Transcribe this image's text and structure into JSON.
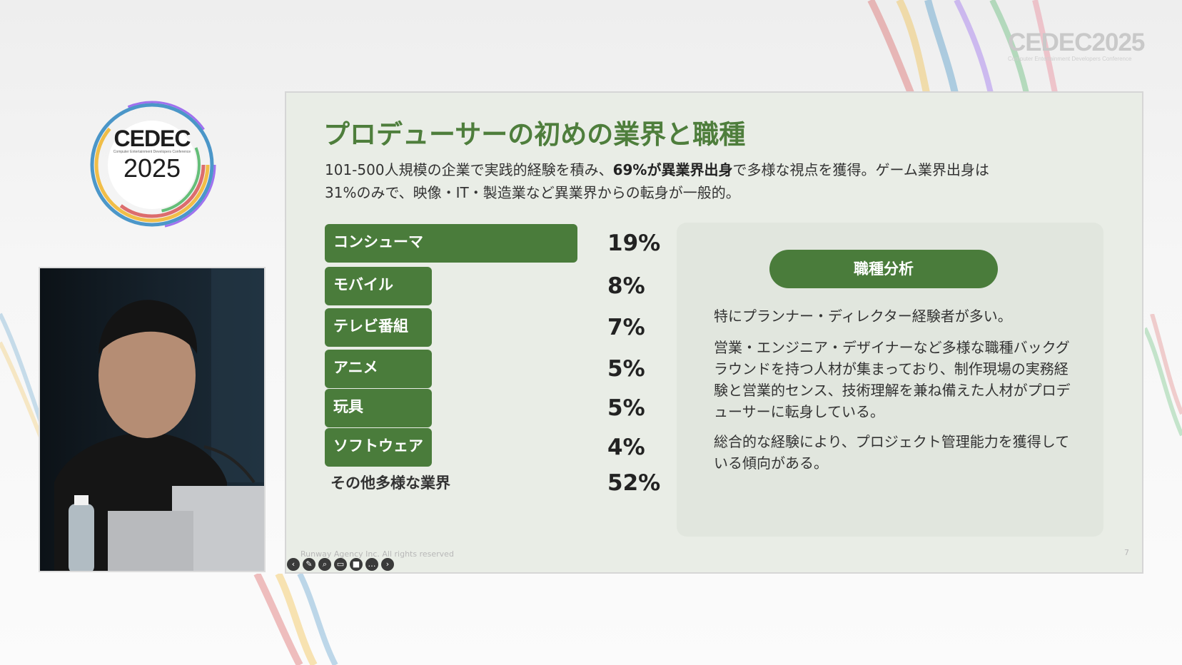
{
  "brand": {
    "top_right": {
      "word": "CEDEC2025",
      "subtitle": "Computer Entertainment Developers Conference"
    },
    "logo": {
      "word": "CEDEC",
      "subtitle": "Computer Entertainment Developers Conference",
      "year": "2025"
    }
  },
  "slide": {
    "title": "プロデューサーの初めの業界と職種",
    "desc": {
      "part1": "101-500人規模の企業で実践的経験を積み、",
      "bold": "69%が異業界出身",
      "part2": "で多様な視点を獲得。ゲーム業界出身は",
      "line2": "31%のみで、映像・IT・製造業など異業界からの転身が一般的。"
    },
    "bars": [
      {
        "label": "コンシューマ",
        "pct": "19%",
        "value": 19
      },
      {
        "label": "モバイル",
        "pct": "8%",
        "value": 8
      },
      {
        "label": "テレビ番組",
        "pct": "7%",
        "value": 7
      },
      {
        "label": "アニメ",
        "pct": "5%",
        "value": 5
      },
      {
        "label": "玩具",
        "pct": "5%",
        "value": 5
      },
      {
        "label": "ソフトウェア",
        "pct": "4%",
        "value": 4
      }
    ],
    "other": {
      "label": "その他多様な業界",
      "pct": "52%"
    },
    "panel": {
      "pill": "職種分析",
      "p1": "特にプランナー・ディレクター経験者が多い。",
      "p2": "営業・エンジニア・デザイナーなど多様な職種バックグラウンドを持つ人材が集まっており、制作現場の実務経験と営業的センス、技術理解を兼ね備えた人材がプロデューサーに転身している。",
      "p3": "総合的な経験により、プロジェクト管理能力を獲得している傾向がある。"
    },
    "footer": "Runway Agency Inc. All rights reserved",
    "page": "7"
  },
  "toolbar": {
    "icons": [
      "arrow-left-icon",
      "pen-icon",
      "zoom-icon",
      "captions-icon",
      "camera-icon",
      "more-icon",
      "arrow-right-icon"
    ]
  },
  "colors": {
    "accent": "#4a7c3b",
    "title": "#4e7e3c",
    "slide_bg": "#e9ede6"
  }
}
